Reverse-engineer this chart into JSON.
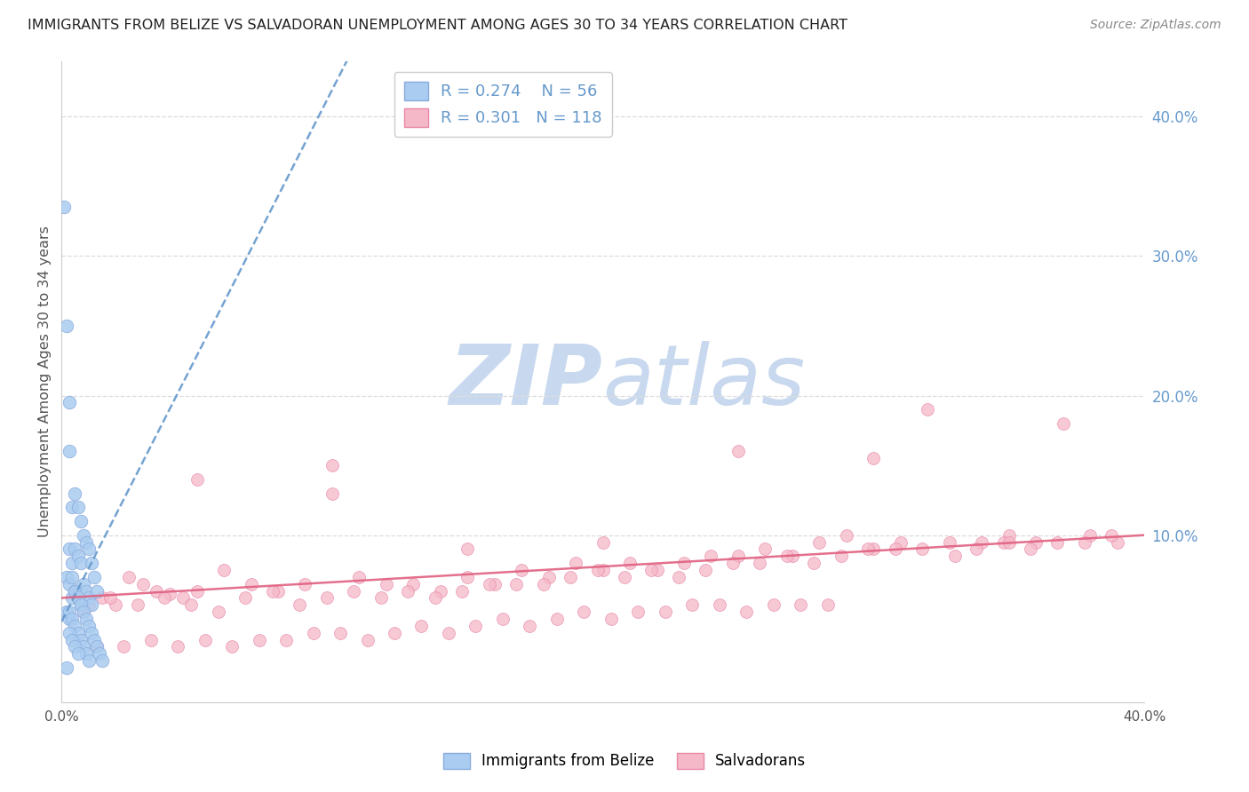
{
  "title": "IMMIGRANTS FROM BELIZE VS SALVADORAN UNEMPLOYMENT AMONG AGES 30 TO 34 YEARS CORRELATION CHART",
  "source": "Source: ZipAtlas.com",
  "ylabel": "Unemployment Among Ages 30 to 34 years",
  "xlim": [
    0.0,
    0.4
  ],
  "ylim": [
    -0.02,
    0.44
  ],
  "yticks_right": [
    0.1,
    0.2,
    0.3,
    0.4
  ],
  "ytick_labels_right": [
    "10.0%",
    "20.0%",
    "30.0%",
    "40.0%"
  ],
  "blue_R": 0.274,
  "blue_N": 56,
  "pink_R": 0.301,
  "pink_N": 118,
  "blue_color": "#aaccf0",
  "blue_edge": "#88aadd",
  "blue_line_color": "#6699cc",
  "pink_color": "#f5b8c8",
  "pink_edge": "#e888a8",
  "pink_line_color": "#e06080",
  "watermark_zip_color": "#c8d8ee",
  "watermark_atlas_color": "#c8d8ee",
  "tick_color": "#6699cc",
  "grid_color": "#dddddd",
  "title_fontsize": 11.5,
  "source_fontsize": 10,
  "blue_x": [
    0.001,
    0.002,
    0.002,
    0.002,
    0.003,
    0.003,
    0.003,
    0.003,
    0.004,
    0.004,
    0.004,
    0.005,
    0.005,
    0.005,
    0.006,
    0.006,
    0.006,
    0.007,
    0.007,
    0.007,
    0.008,
    0.008,
    0.009,
    0.009,
    0.01,
    0.01,
    0.011,
    0.011,
    0.012,
    0.013,
    0.003,
    0.004,
    0.004,
    0.005,
    0.005,
    0.006,
    0.006,
    0.007,
    0.007,
    0.008,
    0.008,
    0.009,
    0.009,
    0.01,
    0.01,
    0.011,
    0.012,
    0.013,
    0.014,
    0.015,
    0.002,
    0.003,
    0.003,
    0.004,
    0.005,
    0.006
  ],
  "blue_y": [
    0.335,
    0.005,
    0.07,
    0.045,
    0.16,
    0.09,
    0.065,
    0.04,
    0.12,
    0.08,
    0.055,
    0.13,
    0.09,
    0.06,
    0.12,
    0.085,
    0.055,
    0.11,
    0.08,
    0.05,
    0.1,
    0.065,
    0.095,
    0.06,
    0.09,
    0.055,
    0.08,
    0.05,
    0.07,
    0.06,
    0.045,
    0.07,
    0.04,
    0.06,
    0.035,
    0.055,
    0.03,
    0.05,
    0.025,
    0.045,
    0.02,
    0.04,
    0.015,
    0.035,
    0.01,
    0.03,
    0.025,
    0.02,
    0.015,
    0.01,
    0.25,
    0.195,
    0.03,
    0.025,
    0.02,
    0.015
  ],
  "pink_x": [
    0.005,
    0.01,
    0.015,
    0.02,
    0.025,
    0.03,
    0.035,
    0.04,
    0.045,
    0.05,
    0.06,
    0.07,
    0.08,
    0.09,
    0.1,
    0.11,
    0.12,
    0.13,
    0.14,
    0.15,
    0.16,
    0.17,
    0.18,
    0.19,
    0.2,
    0.21,
    0.22,
    0.23,
    0.24,
    0.25,
    0.26,
    0.27,
    0.28,
    0.29,
    0.3,
    0.31,
    0.32,
    0.33,
    0.34,
    0.35,
    0.36,
    0.37,
    0.38,
    0.39,
    0.008,
    0.018,
    0.028,
    0.038,
    0.048,
    0.058,
    0.068,
    0.078,
    0.088,
    0.098,
    0.108,
    0.118,
    0.128,
    0.138,
    0.148,
    0.158,
    0.168,
    0.178,
    0.188,
    0.198,
    0.208,
    0.218,
    0.228,
    0.238,
    0.248,
    0.258,
    0.268,
    0.278,
    0.288,
    0.298,
    0.308,
    0.318,
    0.328,
    0.338,
    0.348,
    0.358,
    0.368,
    0.378,
    0.388,
    0.05,
    0.1,
    0.15,
    0.2,
    0.25,
    0.3,
    0.35,
    0.013,
    0.023,
    0.033,
    0.043,
    0.053,
    0.063,
    0.073,
    0.083,
    0.093,
    0.103,
    0.113,
    0.123,
    0.133,
    0.143,
    0.153,
    0.163,
    0.173,
    0.183,
    0.193,
    0.203,
    0.213,
    0.223,
    0.233,
    0.243,
    0.253,
    0.263,
    0.273,
    0.283
  ],
  "pink_y": [
    0.06,
    0.05,
    0.055,
    0.05,
    0.07,
    0.065,
    0.06,
    0.058,
    0.055,
    0.06,
    0.075,
    0.065,
    0.06,
    0.065,
    0.15,
    0.07,
    0.065,
    0.065,
    0.06,
    0.07,
    0.065,
    0.075,
    0.07,
    0.08,
    0.075,
    0.08,
    0.075,
    0.08,
    0.085,
    0.085,
    0.09,
    0.085,
    0.095,
    0.1,
    0.09,
    0.095,
    0.19,
    0.085,
    0.095,
    0.1,
    0.095,
    0.18,
    0.1,
    0.095,
    0.045,
    0.055,
    0.05,
    0.055,
    0.05,
    0.045,
    0.055,
    0.06,
    0.05,
    0.055,
    0.06,
    0.055,
    0.06,
    0.055,
    0.06,
    0.065,
    0.065,
    0.065,
    0.07,
    0.075,
    0.07,
    0.075,
    0.07,
    0.075,
    0.08,
    0.08,
    0.085,
    0.08,
    0.085,
    0.09,
    0.09,
    0.09,
    0.095,
    0.09,
    0.095,
    0.09,
    0.095,
    0.095,
    0.1,
    0.14,
    0.13,
    0.09,
    0.095,
    0.16,
    0.155,
    0.095,
    0.02,
    0.02,
    0.025,
    0.02,
    0.025,
    0.02,
    0.025,
    0.025,
    0.03,
    0.03,
    0.025,
    0.03,
    0.035,
    0.03,
    0.035,
    0.04,
    0.035,
    0.04,
    0.045,
    0.04,
    0.045,
    0.045,
    0.05,
    0.05,
    0.045,
    0.05,
    0.05,
    0.05
  ]
}
